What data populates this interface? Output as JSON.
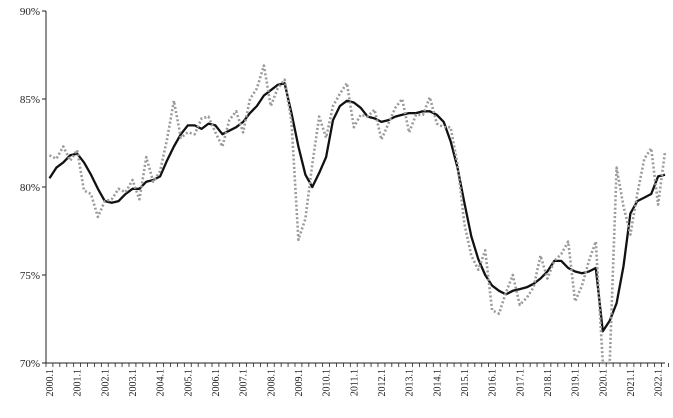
{
  "chart_data": {
    "type": "line",
    "title": "",
    "xlabel": "",
    "ylabel": "",
    "x_start": "2000Q1",
    "x_tick_labels": [
      "2000.1",
      "2001.1",
      "2002.1",
      "2003.1",
      "2004.1",
      "2005.1",
      "2006.1",
      "2007.1",
      "2008.1",
      "2009.1",
      "2010.1",
      "2011.1",
      "2012.1",
      "2013.1",
      "2014.1",
      "2015.1",
      "2016.1",
      "2017.1",
      "2018.1",
      "2019.1",
      "2020.1",
      "2021.1",
      "2022.1"
    ],
    "y_ticks": [
      "70%",
      "75%",
      "80%",
      "85%",
      "90%"
    ],
    "ylim": [
      70,
      90
    ],
    "grid": false,
    "legend": "none",
    "series": [
      {
        "style": "solid",
        "color": "#111111",
        "values": [
          80.5,
          81.1,
          81.4,
          81.8,
          81.9,
          81.4,
          80.7,
          79.9,
          79.2,
          79.1,
          79.2,
          79.6,
          79.9,
          79.9,
          80.3,
          80.4,
          80.6,
          81.5,
          82.3,
          83.0,
          83.5,
          83.5,
          83.3,
          83.6,
          83.5,
          83.0,
          83.2,
          83.4,
          83.7,
          84.2,
          84.6,
          85.2,
          85.5,
          85.8,
          85.9,
          84.2,
          82.3,
          80.7,
          80.0,
          80.8,
          81.7,
          83.8,
          84.6,
          84.9,
          84.8,
          84.5,
          84.0,
          83.9,
          83.7,
          83.8,
          84.0,
          84.1,
          84.2,
          84.2,
          84.3,
          84.3,
          84.1,
          83.7,
          82.6,
          81.1,
          79.1,
          77.2,
          75.9,
          75.0,
          74.4,
          74.1,
          73.9,
          74.1,
          74.2,
          74.3,
          74.5,
          74.8,
          75.2,
          75.8,
          75.8,
          75.4,
          75.2,
          75.1,
          75.2,
          75.4,
          71.8,
          72.4,
          73.4,
          75.5,
          78.5,
          79.2,
          79.4,
          79.6,
          80.6,
          80.7
        ]
      },
      {
        "style": "dotted",
        "color": "#9a9a9a",
        "values": [
          81.8,
          81.6,
          82.3,
          81.5,
          82.1,
          79.8,
          79.6,
          78.3,
          79.2,
          79.3,
          79.9,
          79.7,
          80.4,
          79.3,
          81.7,
          80.3,
          80.9,
          82.7,
          84.9,
          82.8,
          83.1,
          83.0,
          83.9,
          84.0,
          83.1,
          82.3,
          83.8,
          84.3,
          83.1,
          85.0,
          85.6,
          86.9,
          84.6,
          85.6,
          86.1,
          83.7,
          77.0,
          78.2,
          81.3,
          84.0,
          82.8,
          84.6,
          85.3,
          85.9,
          83.4,
          84.1,
          84.0,
          84.4,
          82.7,
          83.6,
          84.5,
          85.0,
          83.1,
          84.1,
          84.1,
          85.1,
          83.6,
          83.4,
          83.4,
          81.3,
          77.9,
          76.1,
          75.3,
          76.4,
          73.0,
          72.8,
          74.0,
          75.0,
          73.3,
          73.7,
          74.3,
          76.1,
          74.8,
          75.8,
          76.2,
          76.9,
          73.5,
          74.4,
          75.8,
          76.9,
          70.0,
          70.0,
          81.1,
          78.9,
          77.3,
          79.6,
          81.6,
          82.2,
          79.0,
          82.0
        ]
      }
    ]
  }
}
